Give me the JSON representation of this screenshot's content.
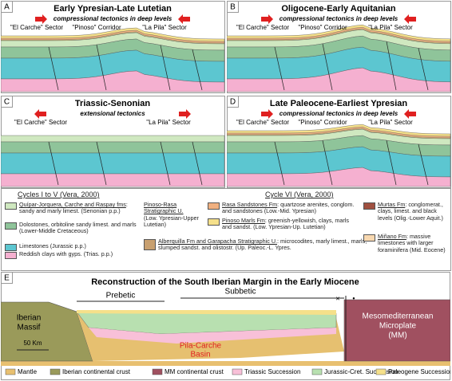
{
  "panels": [
    {
      "letter": "A",
      "title": "Early Ypresian-Late Lutetian",
      "tectonics": "compressional tectonics in deep levels",
      "sectors": [
        "\"El Carche\" Sector",
        "\"Pinoso\" Corridor",
        "\"La Pila\" Sector"
      ]
    },
    {
      "letter": "B",
      "title": "Oligocene-Early Aquitanian",
      "tectonics": "compressional tectonics in deep levels",
      "sectors": [
        "\"El Carche\" Sector",
        "\"Pinoso\" Corridor",
        "\"La Pila\" Sector"
      ]
    },
    {
      "letter": "C",
      "title": "Triassic-Senonian",
      "tectonics": "extensional tectonics",
      "sectors": [
        "\"El Carche\" Sector",
        "\"La Pila\" Sector"
      ]
    },
    {
      "letter": "D",
      "title": "Late Paleocene-Earliest Ypresian",
      "tectonics": "compressional tectonics in deep levels",
      "sectors": [
        "\"El Carche\" Sector",
        "\"Pinoso\" Corridor",
        "\"La Pila\" Sector"
      ]
    }
  ],
  "legend": {
    "cycles_title": "Cycles I to V (Vera, 2000)",
    "cycles_items": [
      {
        "name": "Quípar-Jorquera, Carche and Raspay fms",
        "text": ": sandy and marly limest. (Senonian p.p.)"
      },
      {
        "text": "Dolostones, orbitoline sandy limest. and marls (Lower-Middle Cretaceous)"
      },
      {
        "text": "Limestones (Jurassic p.p.)"
      },
      {
        "text": "Reddish clays with gyps. (Trias. p.p.)"
      }
    ],
    "pinoso_rasa": {
      "name": "Pinoso-Rasa Stratigraphic U.",
      "text": "(Low. Ypresian-Upper Lutetian)"
    },
    "cycle6_title": "Cycle VI (Vera, 2000)",
    "cycle6_items": [
      {
        "name": "Rasa Sandstones Fm",
        "text": ": quartzose arenites, conglom. and sandstones (Low.-Mid. Ypresian)"
      },
      {
        "name": "Pinoso Marls Fm",
        "text": ": greenish-yellowish, clays, marls and sandst. (Low. Ypresian-Up. Lutetian)"
      },
      {
        "name": "Alberquilla Fm and Garapacha Stratigraphic U.",
        "text": ": microcodites, marly limest., marls, slumped sandst. and olistostr. (Up. Paleoc.-L. Ypres."
      },
      {
        "name": "Murtas Fm",
        "text": ": conglomerat., clays, limest. and black levels (Olig.-Lower Aquit.)"
      },
      {
        "name": "Miñano Fm",
        "text": ": massive limestones with larger foraminifera (Mid. Eocene)"
      }
    ]
  },
  "section_e": {
    "letter": "E",
    "title": "Reconstruction of the South Iberian Margin in the Early Miocene",
    "prebetic": "Prebetic",
    "subbetic": "Subbetic",
    "iberian_massif": [
      "Iberian",
      "Massif"
    ],
    "scale": "50 Km",
    "basin": [
      "Pila-Carche",
      "Basin"
    ],
    "microplate": [
      "Mesomediterranean",
      "Microplate",
      "(MM)"
    ],
    "markers": [
      "×",
      "•"
    ],
    "legend": [
      "Mantle",
      "Iberian continental crust",
      "MM continental crust",
      "Triassic Succession",
      "Jurassic-Cret. Succession",
      "Paleogene Succession"
    ]
  }
}
